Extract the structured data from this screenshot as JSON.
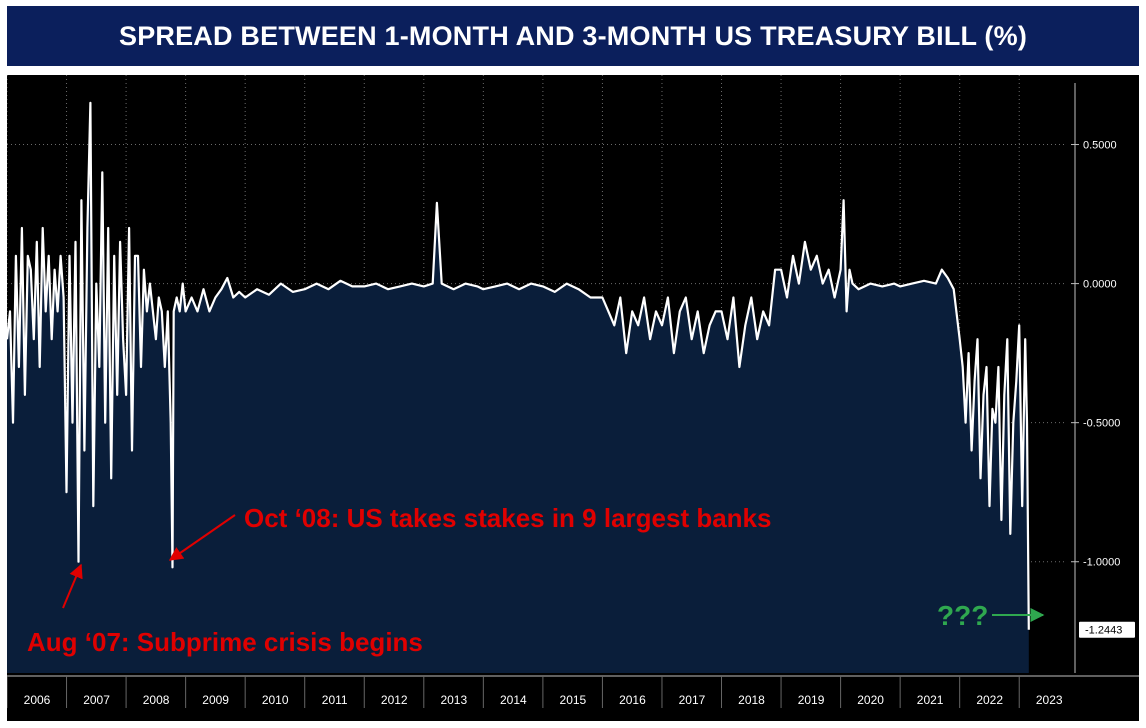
{
  "chart_data": {
    "type": "area",
    "title": "SPREAD BETWEEN 1-MONTH AND 3-MONTH US TREASURY BILL (%)",
    "xlabel": "",
    "ylabel": "",
    "x_tick_labels": [
      "2006",
      "2007",
      "2008",
      "2009",
      "2010",
      "2011",
      "2012",
      "2013",
      "2014",
      "2015",
      "2016",
      "2017",
      "2018",
      "2019",
      "2020",
      "2021",
      "2022",
      "2023"
    ],
    "y_tick_values": [
      0.5,
      0.0,
      -0.5,
      -1.0
    ],
    "y_tick_labels": [
      "0.5000",
      "0.0000",
      "-0.5000",
      "-1.0000"
    ],
    "ylim": [
      -1.4,
      0.75
    ],
    "xlim": [
      2006.0,
      2023.5
    ],
    "last_value_label": "-1.2443",
    "grid": true,
    "series": [
      {
        "x": [
          2006.0,
          2006.05,
          2006.1,
          2006.15,
          2006.2,
          2006.25,
          2006.3,
          2006.35,
          2006.4,
          2006.45,
          2006.5,
          2006.55,
          2006.6,
          2006.65,
          2006.7,
          2006.75,
          2006.8,
          2006.85,
          2006.9,
          2006.95,
          2007.0,
          2007.05,
          2007.1,
          2007.15,
          2007.2,
          2007.25,
          2007.3,
          2007.35,
          2007.4,
          2007.45,
          2007.5,
          2007.55,
          2007.6,
          2007.65,
          2007.7,
          2007.75,
          2007.8,
          2007.85,
          2007.9,
          2007.95,
          2008.0,
          2008.05,
          2008.1,
          2008.15,
          2008.2,
          2008.25,
          2008.3,
          2008.35,
          2008.4,
          2008.45,
          2008.5,
          2008.55,
          2008.6,
          2008.65,
          2008.7,
          2008.75,
          2008.78,
          2008.8,
          2008.85,
          2008.9,
          2008.95,
          2009.0,
          2009.1,
          2009.2,
          2009.3,
          2009.4,
          2009.5,
          2009.6,
          2009.7,
          2009.8,
          2009.9,
          2010.0,
          2010.2,
          2010.4,
          2010.6,
          2010.8,
          2011.0,
          2011.2,
          2011.4,
          2011.6,
          2011.8,
          2012.0,
          2012.2,
          2012.4,
          2012.6,
          2012.8,
          2013.0,
          2013.15,
          2013.22,
          2013.3,
          2013.5,
          2013.7,
          2013.9,
          2014.0,
          2014.2,
          2014.4,
          2014.6,
          2014.8,
          2015.0,
          2015.2,
          2015.4,
          2015.6,
          2015.8,
          2016.0,
          2016.1,
          2016.2,
          2016.3,
          2016.4,
          2016.5,
          2016.6,
          2016.7,
          2016.8,
          2016.9,
          2017.0,
          2017.1,
          2017.2,
          2017.3,
          2017.4,
          2017.5,
          2017.6,
          2017.7,
          2017.8,
          2017.9,
          2018.0,
          2018.1,
          2018.2,
          2018.3,
          2018.4,
          2018.5,
          2018.6,
          2018.7,
          2018.8,
          2018.9,
          2019.0,
          2019.1,
          2019.2,
          2019.3,
          2019.4,
          2019.5,
          2019.6,
          2019.7,
          2019.8,
          2019.9,
          2020.0,
          2020.05,
          2020.1,
          2020.15,
          2020.2,
          2020.3,
          2020.5,
          2020.7,
          2020.9,
          2021.0,
          2021.2,
          2021.4,
          2021.6,
          2021.7,
          2021.8,
          2021.9,
          2022.0,
          2022.05,
          2022.1,
          2022.15,
          2022.2,
          2022.25,
          2022.3,
          2022.35,
          2022.4,
          2022.45,
          2022.5,
          2022.55,
          2022.6,
          2022.65,
          2022.7,
          2022.75,
          2022.8,
          2022.85,
          2022.9,
          2022.95,
          2023.0,
          2023.05,
          2023.1,
          2023.13,
          2023.16
        ],
        "y": [
          -0.2,
          -0.1,
          -0.5,
          0.1,
          -0.3,
          0.2,
          -0.4,
          0.1,
          0.05,
          -0.2,
          0.15,
          -0.3,
          0.2,
          -0.1,
          0.1,
          -0.2,
          0.05,
          -0.1,
          0.1,
          -0.05,
          -0.75,
          0.1,
          -0.5,
          0.15,
          -1.0,
          0.3,
          -0.6,
          0.2,
          0.65,
          -0.8,
          0.0,
          -0.3,
          0.4,
          -0.5,
          0.2,
          -0.7,
          0.1,
          -0.4,
          0.15,
          -0.2,
          -0.4,
          0.2,
          -0.6,
          0.1,
          0.1,
          -0.3,
          0.05,
          -0.1,
          0.0,
          -0.1,
          -0.2,
          -0.05,
          -0.1,
          -0.3,
          -0.1,
          -0.5,
          -1.02,
          -0.1,
          -0.05,
          -0.1,
          0.0,
          -0.1,
          -0.05,
          -0.1,
          -0.02,
          -0.1,
          -0.05,
          -0.02,
          0.02,
          -0.05,
          -0.03,
          -0.05,
          -0.02,
          -0.04,
          0.0,
          -0.03,
          -0.02,
          0.0,
          -0.02,
          0.01,
          -0.01,
          -0.01,
          0.0,
          -0.02,
          -0.01,
          0.0,
          -0.01,
          0.0,
          0.29,
          0.0,
          -0.02,
          0.0,
          -0.01,
          -0.02,
          -0.01,
          0.0,
          -0.02,
          0.0,
          -0.01,
          -0.03,
          0.0,
          -0.02,
          -0.05,
          -0.05,
          -0.1,
          -0.15,
          -0.05,
          -0.25,
          -0.1,
          -0.15,
          -0.05,
          -0.2,
          -0.1,
          -0.15,
          -0.05,
          -0.25,
          -0.1,
          -0.05,
          -0.2,
          -0.1,
          -0.25,
          -0.15,
          -0.1,
          -0.1,
          -0.2,
          -0.05,
          -0.3,
          -0.15,
          -0.05,
          -0.2,
          -0.1,
          -0.15,
          0.05,
          0.05,
          -0.05,
          0.1,
          0.0,
          0.15,
          0.05,
          0.1,
          0.0,
          0.05,
          -0.05,
          0.05,
          0.3,
          -0.1,
          0.05,
          0.0,
          -0.02,
          0.0,
          -0.01,
          0.0,
          -0.01,
          0.0,
          0.01,
          0.0,
          0.05,
          0.02,
          -0.02,
          -0.2,
          -0.3,
          -0.5,
          -0.25,
          -0.6,
          -0.35,
          -0.2,
          -0.7,
          -0.4,
          -0.3,
          -0.8,
          -0.45,
          -0.5,
          -0.3,
          -0.85,
          -0.4,
          -0.2,
          -0.9,
          -0.5,
          -0.35,
          -0.15,
          -0.8,
          -0.2,
          -0.5,
          -1.2443
        ]
      }
    ],
    "annotations": [
      {
        "text": "Oct ‘08: US takes stakes in 9 largest banks",
        "color": "#e00000"
      },
      {
        "text": "Aug ‘07: Subprime crisis begins",
        "color": "#e00000"
      },
      {
        "text": "???",
        "color": "#2fa84f"
      }
    ],
    "colors": {
      "title_bg": "#0b1f5c",
      "plot_bg": "#000000",
      "area_fill": "#0a1e3a",
      "line": "#ffffff",
      "annot_red": "#e00000",
      "annot_green": "#2fa84f"
    }
  }
}
